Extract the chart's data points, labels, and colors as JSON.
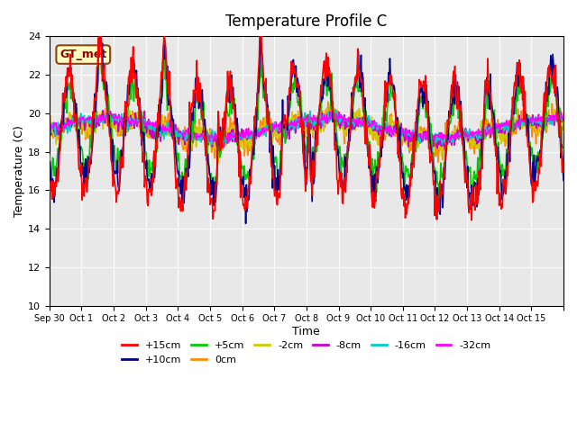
{
  "title": "Temperature Profile C",
  "xlabel": "Time",
  "ylabel": "Temperature (C)",
  "ylim": [
    10,
    24
  ],
  "yticks": [
    10,
    12,
    14,
    16,
    18,
    20,
    22,
    24
  ],
  "annotation_text": "GT_met",
  "annotation_color": "#8B0000",
  "annotation_bg": "#FFFFC0",
  "annotation_border": "#8B4513",
  "series_colors": {
    "+15cm": "#FF0000",
    "+10cm": "#00008B",
    "+5cm": "#00CC00",
    "0cm": "#FF8C00",
    "-2cm": "#CCCC00",
    "-8cm": "#CC00CC",
    "-16cm": "#00CCCC",
    "-32cm": "#FF00FF"
  },
  "tick_labels": [
    "Sep 30",
    "Oct 1",
    "Oct 2",
    "Oct 3",
    "Oct 4",
    "Oct 5",
    "Oct 6",
    "Oct 7",
    "Oct 8",
    "Oct 9",
    "Oct 10",
    "Oct 11",
    "Oct 12",
    "Oct 13",
    "Oct 14",
    "Oct 15",
    ""
  ],
  "background_color": "#E8E8E8",
  "plot_bg": "#E8E8E8"
}
